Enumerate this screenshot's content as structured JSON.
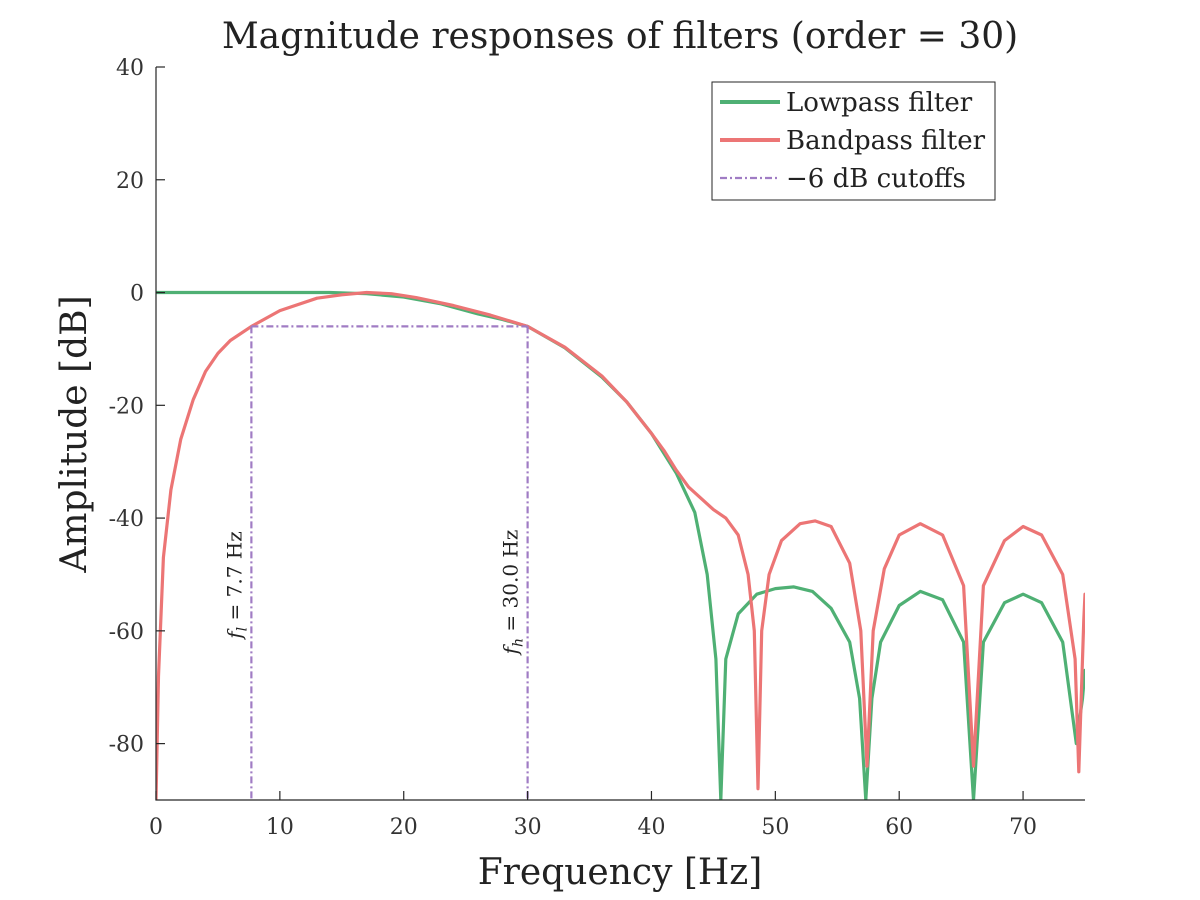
{
  "chart_data": {
    "type": "line",
    "title": "Magnitude responses of filters (order = 30)",
    "xlabel": "Frequency [Hz]",
    "ylabel": "Amplitude [dB]",
    "xlim": [
      0,
      75
    ],
    "ylim": [
      -90,
      40
    ],
    "xticks": [
      0,
      10,
      20,
      30,
      40,
      50,
      60,
      70
    ],
    "yticks": [
      40,
      20,
      0,
      -20,
      -40,
      -60,
      -80
    ],
    "grid": false,
    "legend": "top-right",
    "series": [
      {
        "name": "Lowpass filter",
        "color": "#4fb074",
        "style": "solid",
        "x": [
          0,
          5,
          10,
          14,
          17,
          20,
          23,
          26,
          28,
          30,
          33,
          36,
          38,
          40,
          42,
          43.5,
          44.5,
          45.2,
          45.6,
          46.0,
          47.0,
          48.5,
          50,
          51.5,
          53,
          54.5,
          56,
          56.8,
          57.3,
          57.8,
          58.5,
          60,
          61.7,
          63.5,
          65.2,
          66.0,
          66.8,
          68.5,
          70,
          71.5,
          73.2,
          74.3,
          74.8,
          75
        ],
        "y": [
          0,
          0,
          0,
          0,
          -0.2,
          -0.8,
          -2.0,
          -3.8,
          -4.8,
          -6.0,
          -9.8,
          -15.0,
          -19.4,
          -25.0,
          -32.0,
          -39.0,
          -50.0,
          -65.0,
          -90.0,
          -65.0,
          -57.0,
          -53.5,
          -52.5,
          -52.2,
          -53.0,
          -56.0,
          -62.0,
          -72.0,
          -90.0,
          -72.0,
          -62.0,
          -55.5,
          -53.0,
          -54.5,
          -62.0,
          -90.0,
          -62.0,
          -55.0,
          -53.5,
          -55.0,
          -62.0,
          -80.0,
          -72.0,
          -67.0
        ]
      },
      {
        "name": "Bandpass filter",
        "color": "#ec7575",
        "style": "solid",
        "x": [
          0,
          0.2,
          0.6,
          1.2,
          2,
          3,
          4,
          5,
          6,
          7.7,
          10,
          13,
          15,
          17,
          19,
          21,
          24,
          27,
          30,
          33,
          36,
          38,
          40,
          41,
          42,
          43,
          44,
          45,
          46,
          47.0,
          47.8,
          48.3,
          48.6,
          48.9,
          49.5,
          50.5,
          52,
          53.2,
          54.5,
          56,
          56.9,
          57.4,
          57.9,
          58.8,
          60,
          61.7,
          63.5,
          65.2,
          66.0,
          66.8,
          68.5,
          70,
          71.5,
          73.2,
          74.2,
          74.5,
          74.9,
          75
        ],
        "y": [
          -90,
          -68,
          -47,
          -35,
          -26,
          -19,
          -14,
          -10.8,
          -8.5,
          -6.0,
          -3.2,
          -1.0,
          -0.4,
          0,
          -0.2,
          -0.9,
          -2.3,
          -4.0,
          -6.0,
          -9.7,
          -14.8,
          -19.4,
          -25.0,
          -28.0,
          -31.5,
          -34.5,
          -36.5,
          -38.5,
          -40.0,
          -43.0,
          -50.0,
          -60.0,
          -88.0,
          -60.0,
          -50.0,
          -44.0,
          -41.0,
          -40.5,
          -41.5,
          -48.0,
          -60.0,
          -84.0,
          -60.0,
          -49.0,
          -43.0,
          -41.0,
          -43.0,
          -52.0,
          -84.0,
          -52.0,
          -44.0,
          -41.5,
          -43.0,
          -50.0,
          -65.0,
          -85.0,
          -58.0,
          -53.5
        ]
      },
      {
        "name": "−6 dB cutoffs",
        "color": "#a07cc4",
        "style": "dashdot"
      }
    ],
    "cutoffs": {
      "low": 7.7,
      "high": 30.0,
      "level": -6
    },
    "annotations": [
      {
        "text": "f_l = 7.7 Hz",
        "sub": "l",
        "value": "= 7.7 Hz"
      },
      {
        "text": "f_h = 30.0 Hz",
        "sub": "h",
        "value": "= 30.0 Hz"
      }
    ]
  }
}
